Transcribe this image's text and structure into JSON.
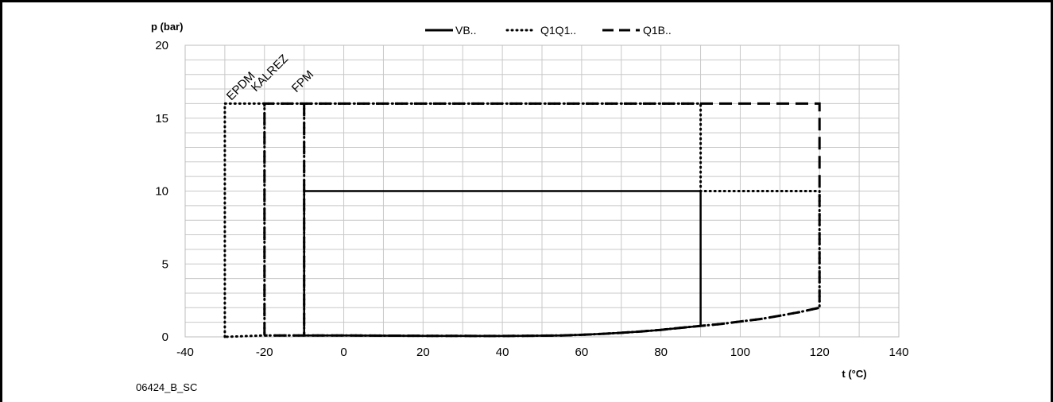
{
  "chart_data": {
    "type": "line",
    "ylabel": "p (bar)",
    "xlabel": "t (°C)",
    "xlim": [
      -40,
      140
    ],
    "ylim": [
      0,
      20
    ],
    "x_ticks": [
      "-40",
      "-20",
      "0",
      "20",
      "40",
      "60",
      "80",
      "100",
      "120",
      "140"
    ],
    "y_ticks": [
      "0",
      "5",
      "10",
      "15",
      "20"
    ],
    "grid": true,
    "legend_position": "top-center",
    "series": [
      {
        "name": "VB..",
        "style": "solid",
        "points": [
          [
            -10,
            0.1
          ],
          [
            -10,
            10
          ],
          [
            90,
            10
          ],
          [
            90,
            0.75
          ],
          [
            85,
            0.62
          ],
          [
            80,
            0.48
          ],
          [
            75,
            0.37
          ],
          [
            70,
            0.28
          ],
          [
            65,
            0.2
          ],
          [
            60,
            0.14
          ],
          [
            55,
            0.1
          ],
          [
            50,
            0.08
          ],
          [
            40,
            0.06
          ],
          [
            20,
            0.07
          ],
          [
            0,
            0.1
          ],
          [
            -10,
            0.1
          ]
        ]
      },
      {
        "name": "Q1Q1..",
        "style": "dotted",
        "points": [
          [
            -30,
            0
          ],
          [
            -30,
            16
          ],
          [
            90,
            16
          ],
          [
            90,
            10
          ],
          [
            120,
            10
          ],
          [
            120,
            2
          ],
          [
            115,
            1.7
          ],
          [
            110,
            1.45
          ],
          [
            105,
            1.22
          ],
          [
            100,
            1.05
          ],
          [
            95,
            0.88
          ],
          [
            90,
            0.75
          ],
          [
            85,
            0.62
          ],
          [
            80,
            0.48
          ],
          [
            75,
            0.37
          ],
          [
            70,
            0.28
          ],
          [
            65,
            0.2
          ],
          [
            60,
            0.14
          ],
          [
            55,
            0.1
          ],
          [
            50,
            0.08
          ],
          [
            40,
            0.06
          ],
          [
            20,
            0.07
          ],
          [
            0,
            0.1
          ],
          [
            -20,
            0.1
          ],
          [
            -30,
            0
          ]
        ]
      },
      {
        "name": "Q1B..",
        "style": "dashed",
        "points": [
          [
            -20,
            0.1
          ],
          [
            -20,
            16
          ],
          [
            120,
            16
          ],
          [
            120,
            2
          ],
          [
            115,
            1.7
          ],
          [
            110,
            1.45
          ],
          [
            105,
            1.22
          ],
          [
            100,
            1.05
          ],
          [
            95,
            0.88
          ],
          [
            90,
            0.75
          ],
          [
            85,
            0.62
          ],
          [
            80,
            0.48
          ],
          [
            75,
            0.37
          ],
          [
            70,
            0.28
          ],
          [
            65,
            0.2
          ],
          [
            60,
            0.14
          ],
          [
            55,
            0.1
          ],
          [
            50,
            0.08
          ],
          [
            40,
            0.06
          ],
          [
            20,
            0.07
          ],
          [
            0,
            0.1
          ],
          [
            -20,
            0.1
          ]
        ]
      },
      {
        "name": "",
        "style": "dotted",
        "points": [
          [
            -20,
            16
          ],
          [
            -20,
            0.1
          ]
        ]
      },
      {
        "name": "",
        "style": "dotted",
        "points": [
          [
            -10,
            16
          ],
          [
            -10,
            0.1
          ]
        ]
      },
      {
        "name": "",
        "style": "dashed",
        "points": [
          [
            -10,
            16
          ],
          [
            -10,
            0.1
          ]
        ]
      }
    ],
    "annotations": [
      "EPDM",
      "KALREZ",
      "FPM"
    ]
  },
  "figure_code": "06424_B_SC"
}
